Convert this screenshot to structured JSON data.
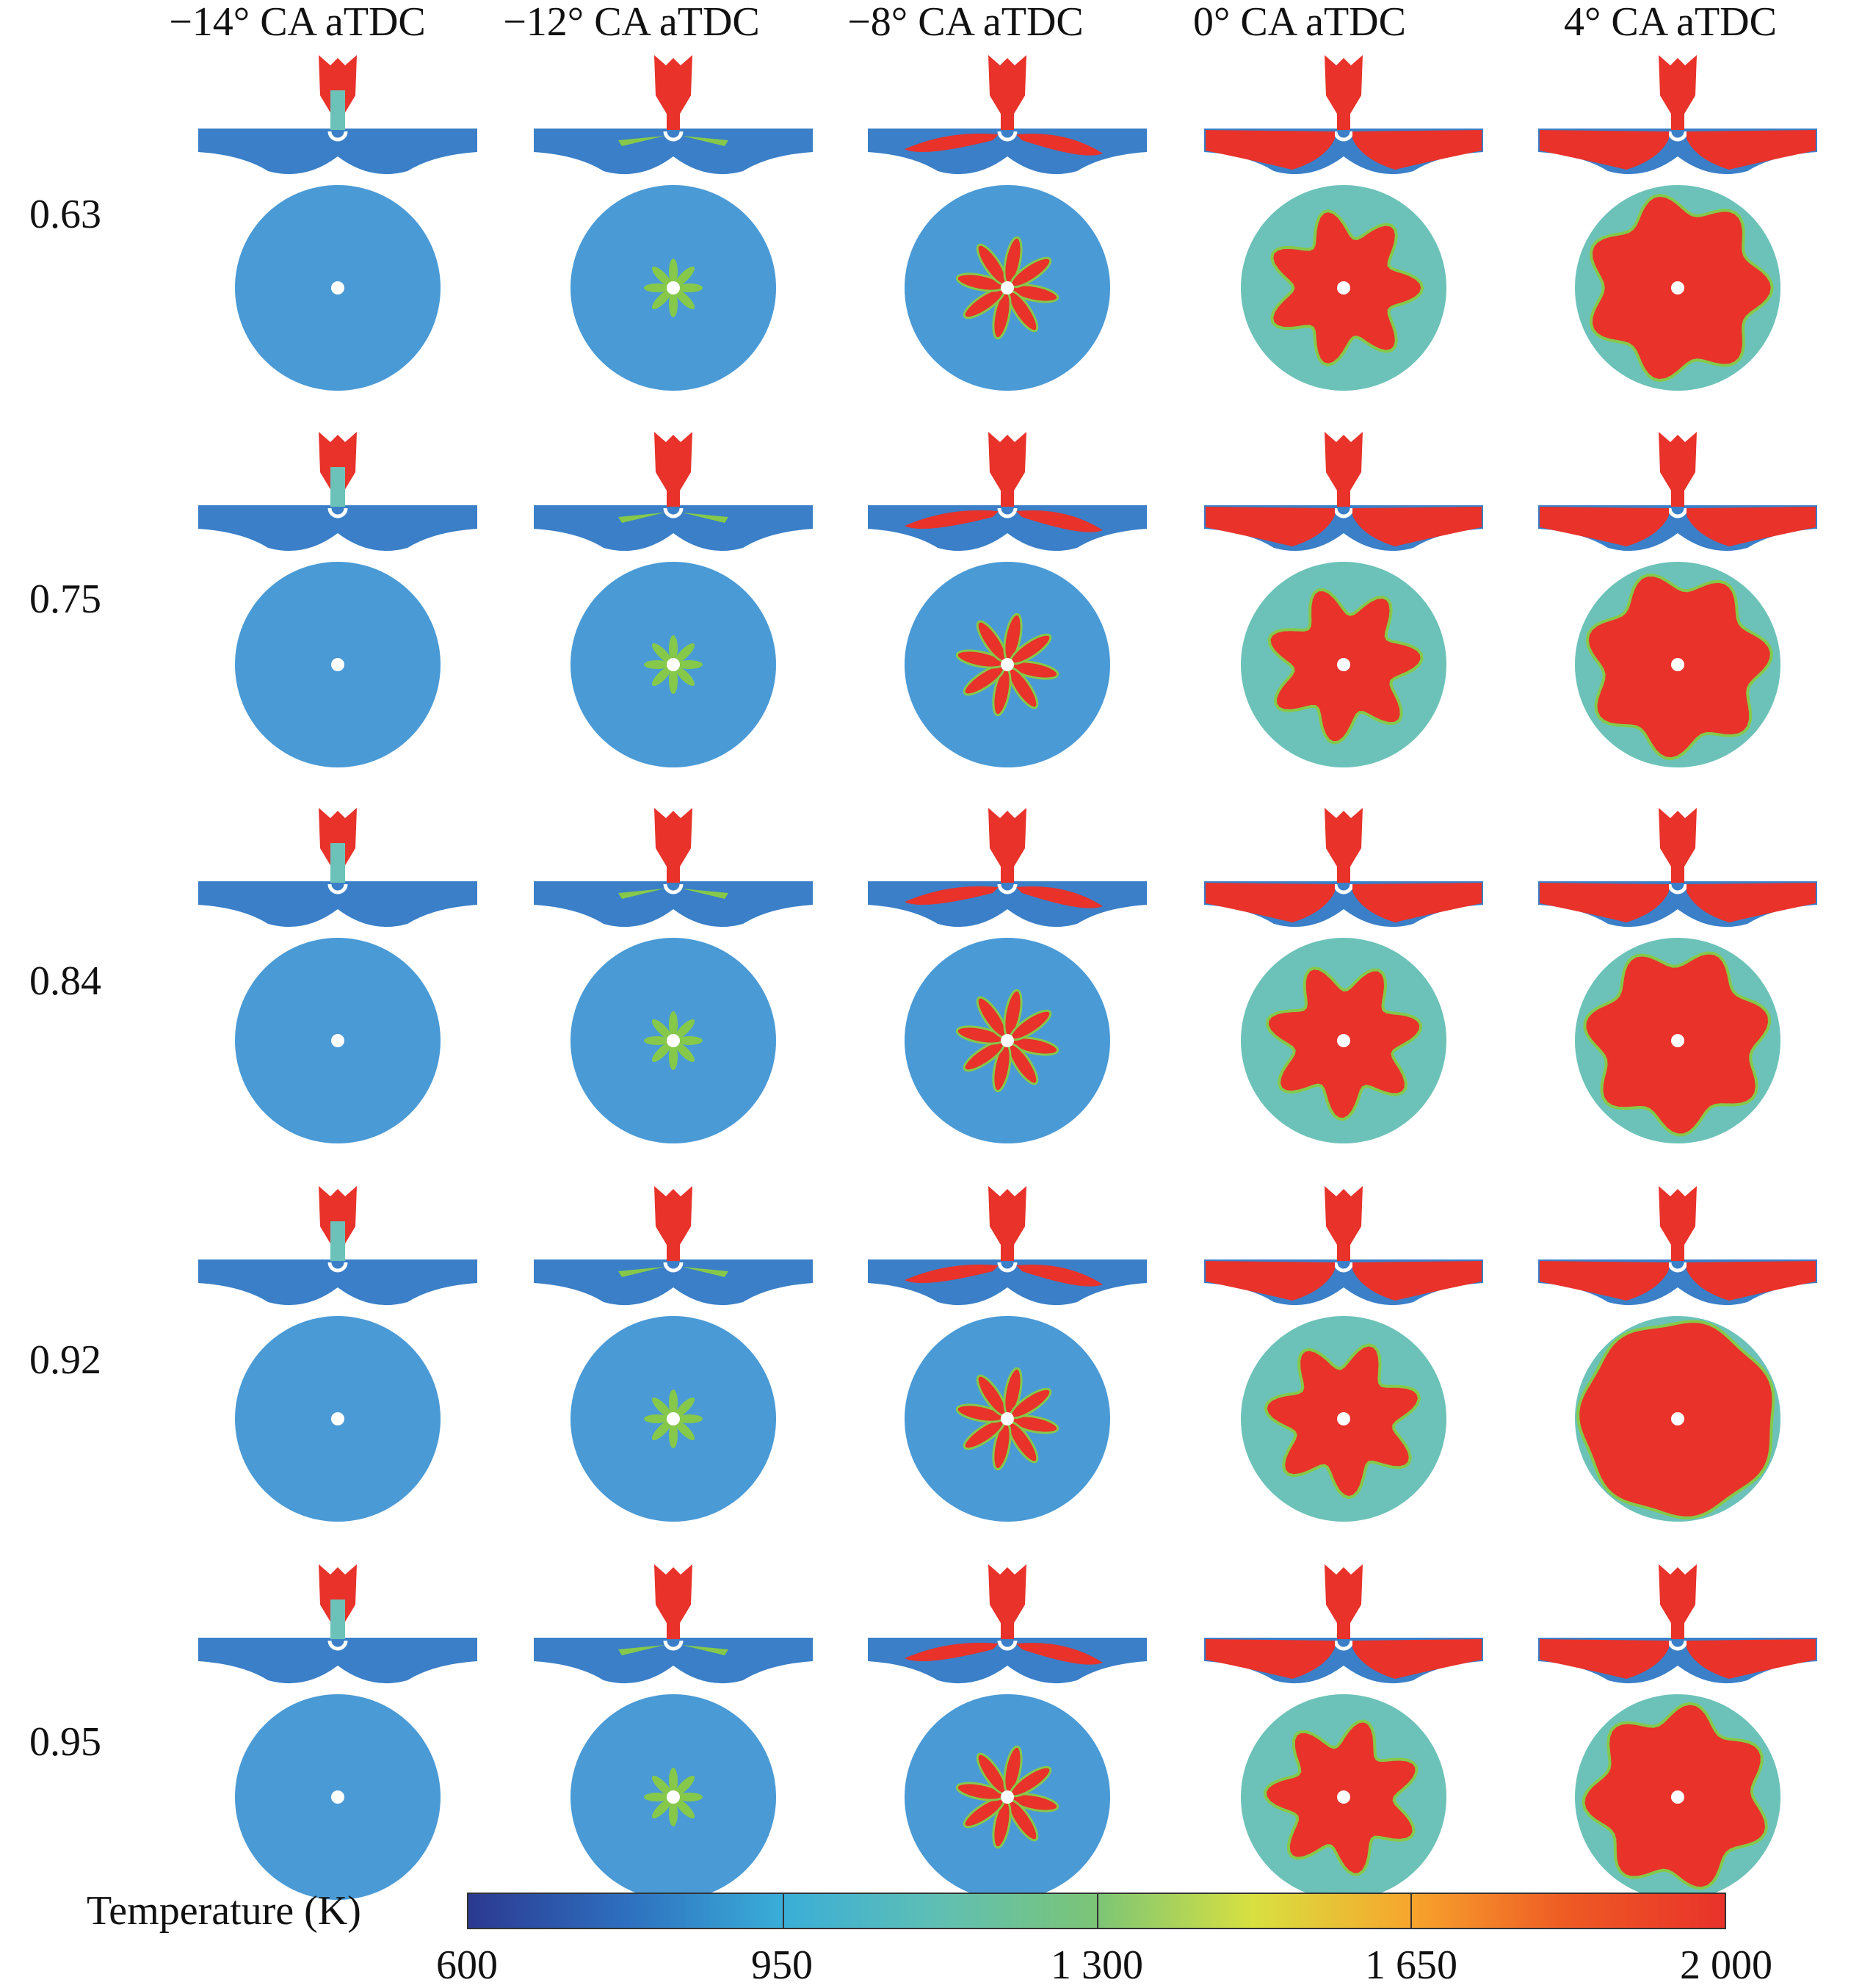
{
  "columns": [
    "−14° CA aTDC",
    "−12° CA aTDC",
    "−8° CA aTDC",
    "0° CA aTDC",
    "4° CA aTDC"
  ],
  "rows": [
    "0.63",
    "0.75",
    "0.84",
    "0.92",
    "0.95"
  ],
  "colorbar": {
    "title": "Temperature (K)",
    "ticks": [
      "600",
      "950",
      "1 300",
      "1 650",
      "2 000"
    ],
    "colors": [
      "#2b3990",
      "#2e6fbf",
      "#3aaed8",
      "#5fbfb3",
      "#7cc576",
      "#d8e040",
      "#f7a52c",
      "#ee5a24",
      "#e8322a"
    ]
  },
  "colors": {
    "cold": "#3a7fc8",
    "cool": "#4a9ad6",
    "mid": "#6cc2b8",
    "warm": "#86c94a",
    "hot": "#e8322a"
  }
}
